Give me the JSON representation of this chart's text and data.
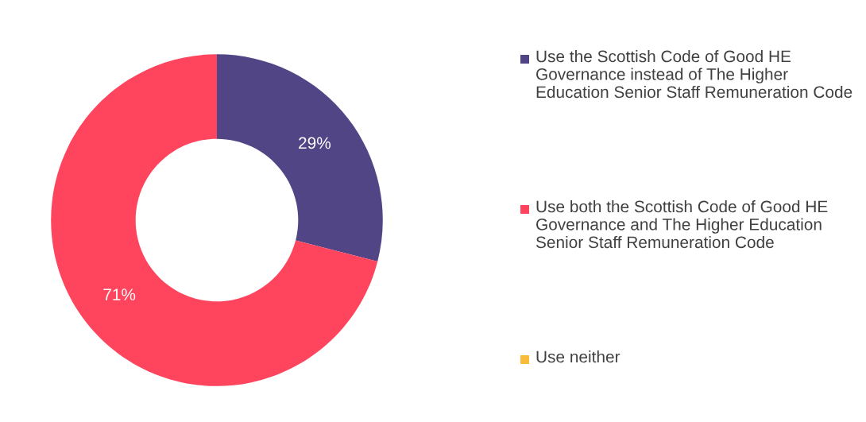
{
  "chart_data": {
    "type": "donut",
    "categories": [
      "Use the Scottish Code of Good HE Governance instead of The Higher Education Senior Staff Remuneration Code",
      "Use both the Scottish Code of Good HE Governance and The Higher Education Senior Staff Remuneration Code",
      "Use neither"
    ],
    "values": [
      29,
      71,
      0
    ],
    "colors": [
      "#524586",
      "#ff455e",
      "#f8bc3a"
    ],
    "value_labels": [
      "29%",
      "71%",
      null
    ],
    "legend": "right"
  }
}
